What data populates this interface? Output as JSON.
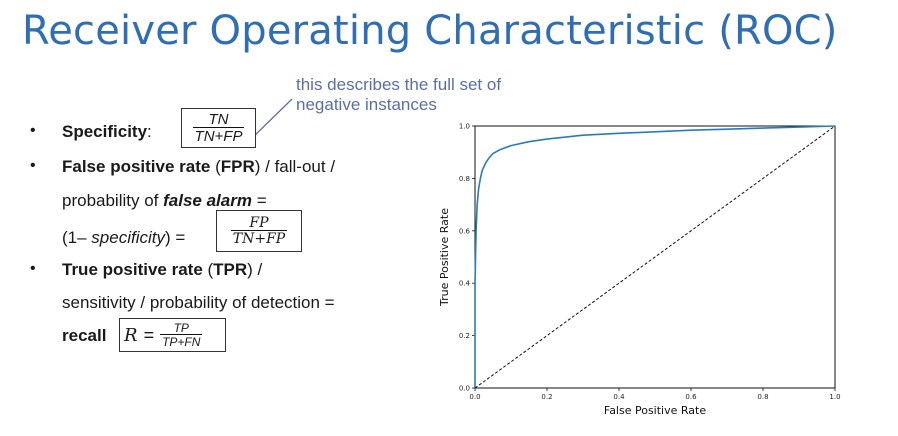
{
  "slide": {
    "title": "Receiver Operating Characteristic (ROC)",
    "annotation_line1": "this describes the full set of",
    "annotation_line2": "negative instances"
  },
  "bullets": {
    "spec_label": "Specificity",
    "spec_colon": ":",
    "spec_num": "TN",
    "spec_den": "TN+FP",
    "fpr_bold": "False positive rate",
    "fpr_open": " (",
    "fpr_abbr": "FPR",
    "fpr_rest": ") / fall-out /",
    "fpr_line2_pre": "probability of ",
    "fpr_line2_em": "false alarm",
    "fpr_line2_post": " =",
    "fpr_line3_pre": "(1– ",
    "fpr_line3_em": "specificity",
    "fpr_line3_post": ") =",
    "fpr_num": "FP",
    "fpr_den": "TN+FP",
    "tpr_bold": "True positive rate",
    "tpr_open": " (",
    "tpr_abbr": "TPR",
    "tpr_rest": ") /",
    "tpr_line2": "sensitivity / probability of detection =",
    "recall_label": "recall",
    "recall_r": "R",
    "recall_eq": "=",
    "recall_num": "TP",
    "recall_den": "TP+FN"
  },
  "chart_data": {
    "type": "line",
    "xlabel": "False Positive Rate",
    "ylabel": "True Positive Rate",
    "xlim": [
      0.0,
      1.0
    ],
    "ylim": [
      0.0,
      1.0
    ],
    "xticks": [
      "0.0",
      "0.2",
      "0.4",
      "0.6",
      "0.8",
      "1.0"
    ],
    "yticks": [
      "0.0",
      "0.2",
      "0.4",
      "0.6",
      "0.8",
      "1.0"
    ],
    "grid": false,
    "series": [
      {
        "color": "#2b7bba",
        "style": "solid",
        "x": [
          0.0,
          0.0,
          0.003,
          0.006,
          0.01,
          0.015,
          0.02,
          0.03,
          0.04,
          0.05,
          0.07,
          0.1,
          0.15,
          0.2,
          0.3,
          0.4,
          0.5,
          0.6,
          0.7,
          0.8,
          0.9,
          1.0
        ],
        "y": [
          0.0,
          0.4,
          0.6,
          0.7,
          0.76,
          0.8,
          0.83,
          0.86,
          0.88,
          0.895,
          0.91,
          0.925,
          0.94,
          0.95,
          0.965,
          0.972,
          0.978,
          0.984,
          0.988,
          0.992,
          0.996,
          1.0
        ]
      },
      {
        "color": "#111111",
        "style": "dashed",
        "x": [
          0.0,
          1.0
        ],
        "y": [
          0.0,
          1.0
        ]
      }
    ]
  }
}
